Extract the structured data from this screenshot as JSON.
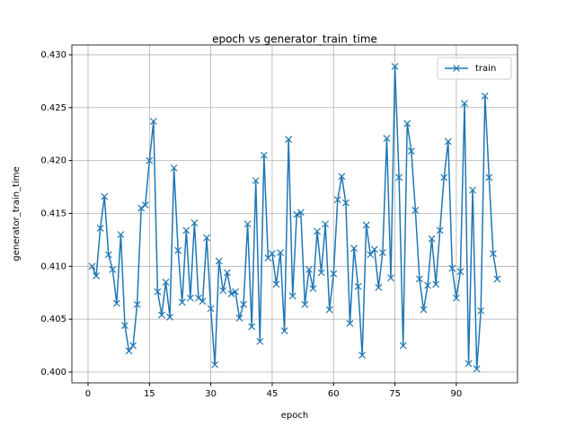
{
  "chart_data": {
    "type": "line",
    "title": "epoch vs generator_train_time",
    "x_label": "epoch",
    "y_label": "generator_train_time",
    "x": [
      1,
      2,
      3,
      4,
      5,
      6,
      7,
      8,
      9,
      10,
      11,
      12,
      13,
      14,
      15,
      16,
      17,
      18,
      19,
      20,
      21,
      22,
      23,
      24,
      25,
      26,
      27,
      28,
      29,
      30,
      31,
      32,
      33,
      34,
      35,
      36,
      37,
      38,
      39,
      40,
      41,
      42,
      43,
      44,
      45,
      46,
      47,
      48,
      49,
      50,
      51,
      52,
      53,
      54,
      55,
      56,
      57,
      58,
      59,
      60,
      61,
      62,
      63,
      64,
      65,
      66,
      67,
      68,
      69,
      70,
      71,
      72,
      73,
      74,
      75,
      76,
      77,
      78,
      79,
      80,
      81,
      82,
      83,
      84,
      85,
      86,
      87,
      88,
      89,
      90,
      91,
      92,
      93,
      94,
      95,
      96,
      97,
      98,
      99,
      100
    ],
    "series": [
      {
        "name": "train",
        "color": "#1f77b4",
        "marker": "x",
        "values": [
          0.41,
          0.4091,
          0.4136,
          0.4166,
          0.4111,
          0.4097,
          0.4065,
          0.413,
          0.4044,
          0.402,
          0.4025,
          0.4064,
          0.4155,
          0.4158,
          0.42,
          0.4237,
          0.4076,
          0.4054,
          0.4085,
          0.4052,
          0.4193,
          0.4115,
          0.4066,
          0.4134,
          0.407,
          0.4141,
          0.407,
          0.4067,
          0.4127,
          0.406,
          0.4007,
          0.4105,
          0.4077,
          0.4094,
          0.4074,
          0.4076,
          0.4051,
          0.4064,
          0.414,
          0.4043,
          0.4181,
          0.4029,
          0.4205,
          0.4108,
          0.4112,
          0.4083,
          0.4113,
          0.4039,
          0.422,
          0.4072,
          0.4149,
          0.4151,
          0.4064,
          0.4097,
          0.4079,
          0.4133,
          0.4094,
          0.414,
          0.4059,
          0.4093,
          0.4163,
          0.4185,
          0.416,
          0.4046,
          0.4117,
          0.4081,
          0.4016,
          0.4139,
          0.4111,
          0.4116,
          0.408,
          0.4113,
          0.4221,
          0.4089,
          0.4289,
          0.4184,
          0.4025,
          0.4235,
          0.4209,
          0.4153,
          0.4088,
          0.4059,
          0.4082,
          0.4126,
          0.4083,
          0.4134,
          0.4184,
          0.4218,
          0.4098,
          0.407,
          0.4095,
          0.4254,
          0.4008,
          0.4172,
          0.4003,
          0.4058,
          0.4261,
          0.4184,
          0.4112,
          0.4088
        ]
      }
    ],
    "xlim": [
      -3.95,
      104.95
    ],
    "ylim": [
      0.39898,
      0.43093
    ],
    "xticks": [
      0,
      15,
      30,
      45,
      60,
      75,
      90
    ],
    "yticks": [
      {
        "value": 0.4,
        "label": "0.400"
      },
      {
        "value": 0.405,
        "label": "0.405"
      },
      {
        "value": 0.41,
        "label": "0.410"
      },
      {
        "value": 0.415,
        "label": "0.415"
      },
      {
        "value": 0.42,
        "label": "0.420"
      },
      {
        "value": 0.425,
        "label": "0.425"
      },
      {
        "value": 0.43,
        "label": "0.430"
      }
    ],
    "grid": true,
    "legend": "upper right"
  }
}
